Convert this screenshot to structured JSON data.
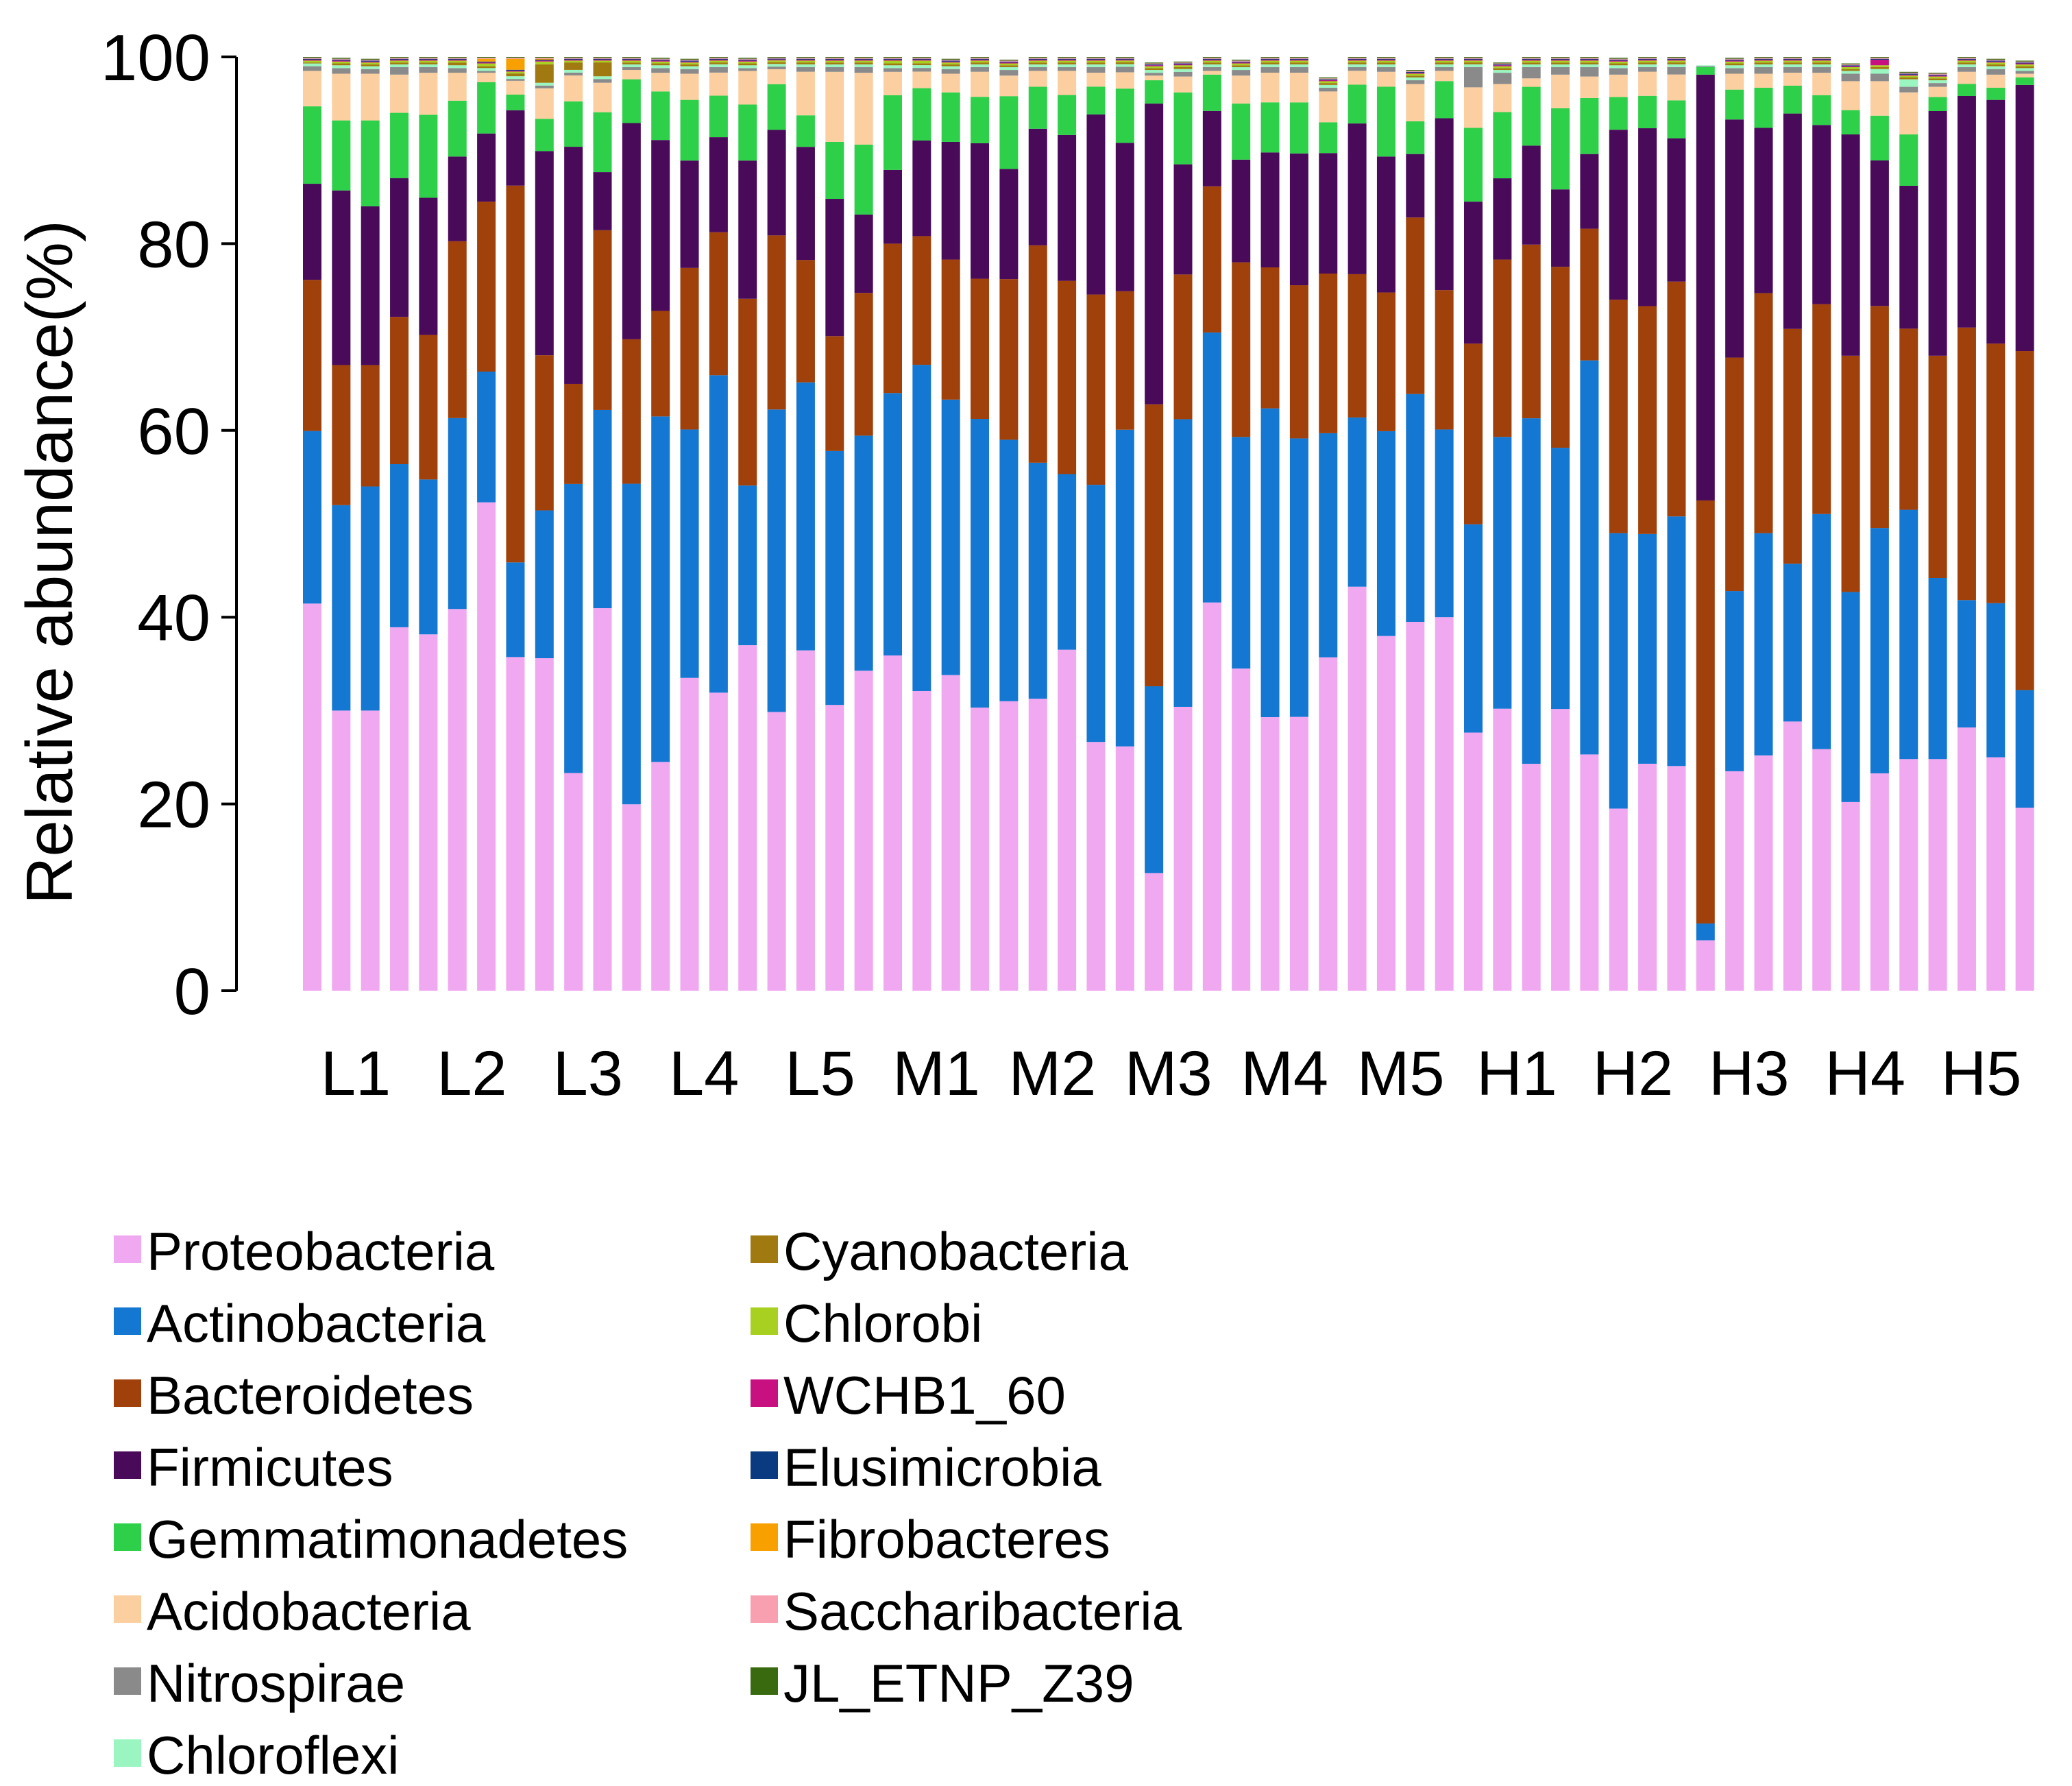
{
  "chart_data": {
    "type": "bar",
    "stacked": true,
    "ylabel": "Relative abundance(%)",
    "ylim": [
      0,
      100
    ],
    "yticks": [
      0,
      20,
      40,
      60,
      80,
      100
    ],
    "grid": false,
    "legend_position": "bottom-left",
    "group_labels": [
      "L1",
      "L2",
      "L3",
      "L4",
      "L5",
      "M1",
      "M2",
      "M3",
      "M4",
      "M5",
      "H1",
      "H2",
      "H3",
      "H4",
      "H5"
    ],
    "bars_per_group": 4,
    "series": [
      {
        "name": "Proteobacteria",
        "color": "#f0a8f0",
        "values": [
          41.5,
          30,
          30,
          39,
          38.2,
          41,
          52.3,
          36.3,
          36,
          23.5,
          41.5,
          20,
          24.5,
          33.5,
          32.3,
          37,
          31.7,
          36.7,
          30.6,
          34.3,
          35.9,
          32.6,
          33.8,
          30.5,
          31,
          31.3,
          36.7,
          26.8,
          27,
          12.6,
          30.4,
          41.7,
          34.5,
          29.5,
          29.5,
          35.7,
          43.7,
          38.1,
          39.5,
          40.2,
          28,
          30.2,
          24.3,
          30.2,
          25.3,
          19.5,
          24.5,
          24.3,
          5.4,
          23.5,
          25.2,
          29,
          25.9,
          20.2,
          23.3,
          24.8,
          24.8,
          28.3,
          25,
          19.6
        ]
      },
      {
        "name": "Actinobacteria",
        "color": "#1478d2",
        "values": [
          18.5,
          22,
          24,
          17.5,
          16.6,
          20.5,
          14,
          10.3,
          16,
          31.2,
          21.5,
          34.4,
          37,
          26.6,
          34.4,
          17.1,
          34.4,
          28.9,
          27.2,
          25.2,
          28.1,
          35.5,
          29.5,
          31.1,
          28,
          25.3,
          18.9,
          27.7,
          35,
          20,
          30.8,
          29,
          24.8,
          33.3,
          30,
          24,
          18.3,
          22,
          24.4,
          20.2,
          22.6,
          29.1,
          37,
          28,
          42.2,
          29.5,
          24.8,
          27,
          1.8,
          19.3,
          23.8,
          17,
          25.2,
          22.5,
          26.3,
          26.7,
          19.4,
          13.7,
          16.5,
          12.6
        ]
      },
      {
        "name": "Bacteroidetes",
        "color": "#a0400a",
        "values": [
          16.2,
          15,
          13,
          15.8,
          15.5,
          19,
          18.2,
          41,
          16.8,
          10.8,
          19.5,
          15.5,
          11.3,
          17.3,
          15.5,
          20,
          19.8,
          13.2,
          12.3,
          15.3,
          16,
          14,
          15,
          15.1,
          17.2,
          23.3,
          20.8,
          20.5,
          15.3,
          30.2,
          15.5,
          15.7,
          18.7,
          15.2,
          16.5,
          17.1,
          15.5,
          14.9,
          18.9,
          15,
          19.6,
          19,
          18.6,
          19.4,
          14.1,
          25,
          24.6,
          25.4,
          45.3,
          25,
          25.7,
          25.3,
          22.5,
          25.3,
          23.8,
          19.4,
          23.8,
          29.3,
          27.8,
          36.3
        ]
      },
      {
        "name": "Firmicutes",
        "color": "#4a0a5a",
        "values": [
          10.3,
          18.7,
          17,
          14.9,
          14.7,
          9.1,
          7.3,
          8.2,
          22.1,
          25.6,
          6.3,
          23.2,
          18.3,
          11.5,
          10.3,
          14.8,
          12,
          12.2,
          14.7,
          8.4,
          7.9,
          10.4,
          12.6,
          14.6,
          11.8,
          12.5,
          15.7,
          19.4,
          16.4,
          32.2,
          11.8,
          8.1,
          11,
          12.4,
          14.2,
          12.9,
          16.3,
          14.6,
          6.8,
          18.5,
          15.4,
          8.7,
          10.6,
          8.3,
          8,
          18.2,
          19.2,
          15.5,
          45.6,
          25.5,
          17.7,
          23.2,
          19.2,
          23.7,
          15.6,
          15.3,
          26.2,
          24.9,
          26.1,
          28.5
        ]
      },
      {
        "name": "Gemmatimonadetes",
        "color": "#2ed04a",
        "values": [
          8.3,
          7.5,
          9.2,
          7,
          8.9,
          6,
          5.5,
          1.7,
          3.5,
          4.9,
          6.5,
          4.7,
          5.2,
          6.5,
          4.5,
          6,
          5.2,
          3.4,
          6.1,
          7.5,
          8,
          5.7,
          5.3,
          5,
          7.8,
          4.5,
          4.3,
          3,
          6,
          2.5,
          7.7,
          3.9,
          6,
          5.4,
          5.5,
          3.3,
          4.2,
          7.5,
          3.5,
          4,
          8,
          7.1,
          6.3,
          8.7,
          6,
          3.5,
          3.5,
          4.1,
          0.8,
          3.2,
          4.3,
          3,
          3.2,
          2.6,
          4.8,
          5.5,
          1.5,
          1.3,
          1.3,
          0.8
        ]
      },
      {
        "name": "Acidobacteria",
        "color": "#fbcfa0",
        "values": [
          3.8,
          5,
          5,
          4.1,
          4.5,
          3,
          1,
          1.5,
          3.3,
          2.8,
          3.2,
          1,
          2,
          2.8,
          2.5,
          3.6,
          1.7,
          4.7,
          7.5,
          7.7,
          2.5,
          1.8,
          2,
          2.7,
          2.2,
          1.7,
          2.6,
          1.5,
          1.8,
          0.5,
          1.7,
          0.4,
          3,
          3.2,
          3.2,
          3.3,
          1.5,
          1.6,
          4,
          1.1,
          4.4,
          3,
          0.9,
          3.6,
          2.3,
          2.4,
          2.6,
          2.8,
          0,
          1.7,
          1.5,
          1.4,
          2.4,
          3.1,
          3.7,
          4.5,
          1.1,
          1.3,
          1.4,
          0.4
        ]
      },
      {
        "name": "Nitrospirae",
        "color": "#8a8a8a",
        "values": [
          0.5,
          0.6,
          0.5,
          0.8,
          0.6,
          0.5,
          0.2,
          0.2,
          0.3,
          0.3,
          0.4,
          0.3,
          0.5,
          0.5,
          0.6,
          0.3,
          0.3,
          0.5,
          0.5,
          0.6,
          0.4,
          0.4,
          0.5,
          0.5,
          0.6,
          0.4,
          0.4,
          0.6,
          0.6,
          0.3,
          0.5,
          0.4,
          0.6,
          0.6,
          0.6,
          0.4,
          0.4,
          0.5,
          0.4,
          0.4,
          2.2,
          1.2,
          1.2,
          0.8,
          1,
          0.7,
          0.5,
          0.8,
          0.1,
          0.6,
          0.7,
          0.6,
          0.6,
          0.8,
          0.8,
          0.6,
          0.4,
          0.5,
          0.6,
          0.3
        ]
      },
      {
        "name": "Chloroflexi",
        "color": "#9af5c0",
        "values": [
          0.3,
          0.3,
          0.3,
          0.3,
          0.3,
          0.3,
          0.3,
          0.3,
          0.3,
          0.3,
          0.3,
          0.3,
          0.3,
          0.3,
          0.3,
          0.3,
          0.3,
          0.3,
          0.3,
          0.3,
          0.3,
          0.3,
          0.3,
          0.3,
          0.3,
          0.3,
          0.3,
          0.3,
          0.3,
          0.3,
          0.3,
          0.3,
          0.3,
          0.3,
          0.3,
          0.3,
          0.3,
          0.3,
          0.3,
          0.3,
          0.3,
          0.3,
          0.3,
          0.3,
          0.3,
          0.3,
          0.3,
          0.3,
          0.1,
          0.3,
          0.3,
          0.3,
          0.3,
          0.3,
          0.5,
          0.8,
          0.3,
          0.3,
          0.3,
          0.3
        ]
      },
      {
        "name": "Cyanobacteria",
        "color": "#a07a10",
        "values": [
          0.1,
          0.2,
          0.2,
          0.2,
          0.2,
          0.3,
          0.2,
          0.3,
          2,
          0.8,
          1.5,
          0.2,
          0.2,
          0.2,
          0.2,
          0.2,
          0.2,
          0.2,
          0.2,
          0.2,
          0.2,
          0.2,
          0.2,
          0.2,
          0.2,
          0.2,
          0.2,
          0.2,
          0.2,
          0.2,
          0.2,
          0.2,
          0.2,
          0.2,
          0.2,
          0.2,
          0.2,
          0.2,
          0.2,
          0.2,
          0.2,
          0.2,
          0.2,
          0.2,
          0.2,
          0.2,
          0.2,
          0.2,
          0,
          0.2,
          0.2,
          0.2,
          0.2,
          0.2,
          0.2,
          0.2,
          0.2,
          0.2,
          0.2,
          0.2
        ]
      },
      {
        "name": "Chlorobi",
        "color": "#a8d020",
        "values": [
          0.2,
          0.2,
          0.2,
          0.2,
          0.2,
          0.2,
          0.3,
          0.2,
          0.3,
          0.2,
          0.2,
          0.2,
          0.2,
          0.2,
          0.2,
          0.2,
          0.2,
          0.2,
          0.2,
          0.2,
          0.3,
          0.3,
          0.2,
          0.2,
          0.2,
          0.2,
          0.2,
          0.2,
          0.2,
          0.2,
          0.2,
          0.2,
          0.2,
          0.2,
          0.2,
          0.2,
          0.2,
          0.2,
          0.2,
          0.2,
          0.2,
          0.2,
          0.2,
          0.2,
          0.2,
          0.2,
          0.2,
          0.2,
          0,
          0.2,
          0.2,
          0.2,
          0.2,
          0.2,
          0.2,
          0.2,
          0.2,
          0.2,
          0.2,
          0.2
        ]
      },
      {
        "name": "WCHB1_60",
        "color": "#c81080",
        "values": [
          0.1,
          0.1,
          0.1,
          0.1,
          0.1,
          0.1,
          0.1,
          0.1,
          0.1,
          0.1,
          0.1,
          0.1,
          0.1,
          0.1,
          0.1,
          0.1,
          0.1,
          0.1,
          0.1,
          0.1,
          0.1,
          0.1,
          0.1,
          0.1,
          0.1,
          0.1,
          0.1,
          0.1,
          0.1,
          0.1,
          0.1,
          0.1,
          0.1,
          0.1,
          0.1,
          0.1,
          0.1,
          0.1,
          0.1,
          0.1,
          0.1,
          0.1,
          0.1,
          0.1,
          0.1,
          0.1,
          0.1,
          0.1,
          0,
          0.1,
          0.1,
          0.1,
          0.1,
          0.1,
          0.6,
          0.1,
          0.1,
          0.1,
          0.1,
          0.1
        ]
      },
      {
        "name": "Elusimicrobia",
        "color": "#0a3a80",
        "values": [
          0.1,
          0.1,
          0.1,
          0.1,
          0.1,
          0.1,
          0.1,
          0.1,
          0.1,
          0.1,
          0.1,
          0.1,
          0.1,
          0.1,
          0.1,
          0.1,
          0.1,
          0.1,
          0.1,
          0.1,
          0.1,
          0.1,
          0.1,
          0.1,
          0.1,
          0.1,
          0.1,
          0.1,
          0.1,
          0.1,
          0.1,
          0.1,
          0.1,
          0.1,
          0.1,
          0.1,
          0.1,
          0.1,
          0.1,
          0.1,
          0.1,
          0.1,
          0.1,
          0.1,
          0.1,
          0.1,
          0.1,
          0.1,
          0,
          0.1,
          0.1,
          0.1,
          0.1,
          0.1,
          0.1,
          0.1,
          0.1,
          0.1,
          0.1,
          0.1
        ]
      },
      {
        "name": "Fibrobacteres",
        "color": "#f8a000",
        "values": [
          0,
          0,
          0,
          0,
          0,
          0,
          0.3,
          1.2,
          0.1,
          0,
          0,
          0,
          0,
          0,
          0,
          0,
          0,
          0,
          0,
          0,
          0,
          0,
          0,
          0,
          0,
          0,
          0,
          0,
          0,
          0,
          0,
          0,
          0,
          0,
          0,
          0,
          0,
          0,
          0,
          0,
          0,
          0,
          0,
          0,
          0,
          0,
          0,
          0,
          0,
          0,
          0,
          0,
          0,
          0,
          0,
          0,
          0,
          0,
          0,
          0
        ]
      },
      {
        "name": "Saccharibacteria",
        "color": "#f8a0b0",
        "values": [
          0.1,
          0.1,
          0.1,
          0.1,
          0.1,
          0.1,
          0.1,
          0.1,
          0.1,
          0.1,
          0.1,
          0.1,
          0.1,
          0.1,
          0.1,
          0.1,
          0.1,
          0.1,
          0.1,
          0.1,
          0.1,
          0.1,
          0.1,
          0.1,
          0.1,
          0.1,
          0.1,
          0.1,
          0.1,
          0.1,
          0.1,
          0.1,
          0.1,
          0.1,
          0.1,
          0.1,
          0.1,
          0.1,
          0.1,
          0.1,
          0.1,
          0.1,
          0.1,
          0.1,
          0.1,
          0.1,
          0.1,
          0.1,
          0,
          0.1,
          0.1,
          0.1,
          0.1,
          0.1,
          0.1,
          0.1,
          0.1,
          0.1,
          0.1,
          0.1
        ]
      },
      {
        "name": "JL_ETNP_Z39",
        "color": "#3a6a10",
        "values": [
          0.1,
          0.1,
          0.1,
          0.1,
          0.1,
          0.1,
          0.1,
          0.1,
          0.1,
          0.1,
          0.1,
          0.1,
          0.1,
          0.1,
          0.1,
          0.1,
          0.1,
          0.1,
          0.1,
          0.1,
          0.1,
          0.1,
          0.1,
          0.1,
          0.1,
          0.1,
          0.1,
          0.1,
          0.1,
          0.1,
          0.1,
          0.1,
          0.1,
          0.1,
          0.1,
          0.1,
          0.1,
          0.1,
          0.1,
          0.1,
          0.1,
          0.1,
          0.1,
          0.1,
          0.1,
          0.1,
          0.1,
          0.1,
          0,
          0.1,
          0.1,
          0.1,
          0.1,
          0.1,
          0.1,
          0.1,
          0.1,
          0.1,
          0.1,
          0.1
        ]
      }
    ]
  }
}
